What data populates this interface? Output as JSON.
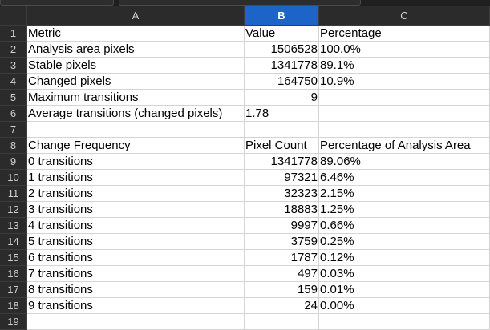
{
  "columns": [
    "A",
    "B",
    "C"
  ],
  "selected_column": "B",
  "rows": [
    {
      "n": "1",
      "a": "Metric",
      "b": "Value",
      "c": "Percentage",
      "b_align": "txt"
    },
    {
      "n": "2",
      "a": "Analysis area pixels",
      "b": "1506528",
      "c": "100.0%"
    },
    {
      "n": "3",
      "a": "Stable pixels",
      "b": "1341778",
      "c": "89.1%"
    },
    {
      "n": "4",
      "a": "Changed pixels",
      "b": "164750",
      "c": "10.9%"
    },
    {
      "n": "5",
      "a": "Maximum transitions",
      "b": "9",
      "c": ""
    },
    {
      "n": "6",
      "a": "Average transitions (changed pixels)",
      "b": "1.78",
      "c": "",
      "b_align": "txt"
    },
    {
      "n": "7",
      "a": "",
      "b": "",
      "c": ""
    },
    {
      "n": "8",
      "a": "Change Frequency",
      "b": "Pixel Count",
      "c": "Percentage of Analysis Area",
      "b_align": "txt"
    },
    {
      "n": "9",
      "a": "0 transitions",
      "b": "1341778",
      "c": "89.06%"
    },
    {
      "n": "10",
      "a": "1 transitions",
      "b": "97321",
      "c": "6.46%"
    },
    {
      "n": "11",
      "a": "2 transitions",
      "b": "32323",
      "c": "2.15%"
    },
    {
      "n": "12",
      "a": "3 transitions",
      "b": "18883",
      "c": "1.25%"
    },
    {
      "n": "13",
      "a": "4 transitions",
      "b": "9997",
      "c": "0.66%"
    },
    {
      "n": "14",
      "a": "5 transitions",
      "b": "3759",
      "c": "0.25%"
    },
    {
      "n": "15",
      "a": "6 transitions",
      "b": "1787",
      "c": "0.12%"
    },
    {
      "n": "16",
      "a": "7 transitions",
      "b": "497",
      "c": "0.03%"
    },
    {
      "n": "17",
      "a": "8 transitions",
      "b": "159",
      "c": "0.01%"
    },
    {
      "n": "18",
      "a": "9 transitions",
      "b": "24",
      "c": "0.00%"
    },
    {
      "n": "19",
      "a": "",
      "b": "",
      "c": ""
    }
  ],
  "colors": {
    "selected_header": "#1c64c7",
    "header_bg": "#2b2b2b",
    "grid": "#d4d4d4"
  }
}
